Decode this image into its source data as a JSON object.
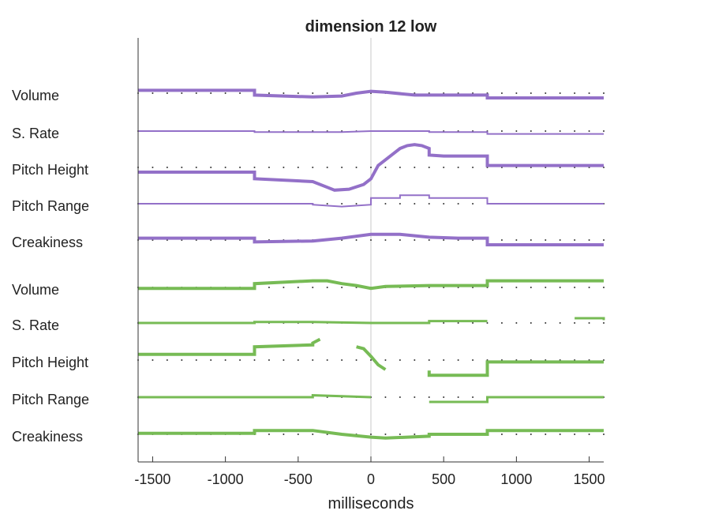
{
  "chart_data": {
    "type": "line",
    "title": "dimension 12 low",
    "xlabel": "milliseconds",
    "ylabel": "",
    "xlim": [
      -1600,
      1600
    ],
    "xticks": [
      -1500,
      -1000,
      -500,
      0,
      500,
      1000,
      1500
    ],
    "xtick_labels": [
      "-1500",
      "-1000",
      "-500",
      "0",
      "500",
      "1000",
      "1500"
    ],
    "grid": false,
    "reference_line_x": 0,
    "colors": {
      "purple": "#9370C8",
      "green": "#77BB55",
      "axis": "#333333",
      "zero_line": "#c8c8c8",
      "baseline_dots": "#333333"
    },
    "rows": [
      {
        "label": "Volume",
        "group": "purple",
        "weight": 4,
        "segments": [
          [
            [
              -1600,
              3
            ],
            [
              -800,
              3
            ],
            [
              -800,
              -2
            ],
            [
              -400,
              -4
            ],
            [
              -200,
              -3
            ],
            [
              -100,
              0
            ],
            [
              0,
              2
            ],
            [
              100,
              1
            ],
            [
              300,
              -2
            ],
            [
              500,
              -2
            ],
            [
              800,
              -2
            ],
            [
              800,
              -5
            ],
            [
              1600,
              -5
            ]
          ]
        ]
      },
      {
        "label": "S. Rate",
        "group": "purple",
        "weight": 2,
        "segments": [
          [
            [
              -1600,
              0
            ],
            [
              -800,
              0
            ],
            [
              -800,
              -1
            ],
            [
              -200,
              -1
            ],
            [
              0,
              0
            ],
            [
              400,
              0
            ],
            [
              400,
              -1
            ],
            [
              800,
              -1
            ],
            [
              800,
              -3
            ],
            [
              1600,
              -3
            ]
          ]
        ]
      },
      {
        "label": "Pitch Height",
        "group": "purple",
        "weight": 4,
        "segments": [
          [
            [
              -1600,
              -5
            ],
            [
              -800,
              -5
            ],
            [
              -800,
              -12
            ],
            [
              -400,
              -15
            ],
            [
              -300,
              -21
            ],
            [
              -250,
              -24
            ],
            [
              -150,
              -23
            ],
            [
              -50,
              -18
            ],
            [
              0,
              -12
            ],
            [
              50,
              2
            ],
            [
              100,
              8
            ],
            [
              150,
              14
            ],
            [
              200,
              20
            ],
            [
              250,
              23
            ],
            [
              300,
              24
            ],
            [
              350,
              23
            ],
            [
              400,
              20
            ],
            [
              400,
              13
            ],
            [
              500,
              12
            ],
            [
              800,
              12
            ],
            [
              800,
              2
            ],
            [
              1600,
              2
            ]
          ]
        ]
      },
      {
        "label": "Pitch Range",
        "group": "purple",
        "weight": 2,
        "segments": [
          [
            [
              -1600,
              0
            ],
            [
              -400,
              0
            ],
            [
              -400,
              -1
            ],
            [
              -200,
              -3
            ],
            [
              0,
              -1
            ],
            [
              0,
              6
            ],
            [
              200,
              6
            ],
            [
              200,
              9
            ],
            [
              400,
              9
            ],
            [
              400,
              6
            ],
            [
              800,
              6
            ],
            [
              800,
              0
            ],
            [
              1600,
              0
            ]
          ]
        ]
      },
      {
        "label": "Creakiness",
        "group": "purple",
        "weight": 4,
        "segments": [
          [
            [
              -1600,
              2
            ],
            [
              -800,
              2
            ],
            [
              -800,
              -2
            ],
            [
              -400,
              -1
            ],
            [
              -200,
              2
            ],
            [
              0,
              6
            ],
            [
              200,
              6
            ],
            [
              400,
              3
            ],
            [
              600,
              2
            ],
            [
              800,
              2
            ],
            [
              800,
              -5
            ],
            [
              1600,
              -5
            ]
          ]
        ]
      },
      {
        "label": "Volume",
        "group": "green",
        "weight": 4,
        "segments": [
          [
            [
              -1600,
              -1
            ],
            [
              -800,
              -1
            ],
            [
              -800,
              4
            ],
            [
              -400,
              7
            ],
            [
              -300,
              7
            ],
            [
              -200,
              4
            ],
            [
              -100,
              2
            ],
            [
              0,
              -1
            ],
            [
              100,
              1
            ],
            [
              400,
              2
            ],
            [
              800,
              2
            ],
            [
              800,
              7
            ],
            [
              1600,
              7
            ]
          ]
        ]
      },
      {
        "label": "S. Rate",
        "group": "green",
        "weight": 3,
        "segments": [
          [
            [
              -1600,
              0
            ],
            [
              -800,
              0
            ],
            [
              -800,
              1
            ],
            [
              -400,
              1
            ],
            [
              0,
              0
            ],
            [
              400,
              0
            ],
            [
              400,
              2
            ],
            [
              800,
              2
            ]
          ],
          [
            [
              1400,
              5
            ],
            [
              1600,
              5
            ],
            [
              1600,
              3
            ]
          ]
        ]
      },
      {
        "label": "Pitch Height",
        "group": "green",
        "weight": 4,
        "segments": [
          [
            [
              -1600,
              6
            ],
            [
              -800,
              6
            ],
            [
              -800,
              14
            ],
            [
              -400,
              16
            ],
            [
              -400,
              18
            ],
            [
              -350,
              22
            ]
          ],
          [
            [
              -100,
              14
            ],
            [
              -50,
              12
            ],
            [
              0,
              4
            ],
            [
              50,
              -5
            ],
            [
              100,
              -10
            ]
          ],
          [
            [
              400,
              -11
            ],
            [
              400,
              -16
            ],
            [
              800,
              -16
            ],
            [
              800,
              -2
            ],
            [
              1600,
              -2
            ]
          ]
        ]
      },
      {
        "label": "Pitch Range",
        "group": "green",
        "weight": 3,
        "segments": [
          [
            [
              -1600,
              0
            ],
            [
              -400,
              0
            ],
            [
              -400,
              2
            ],
            [
              -200,
              1
            ],
            [
              0,
              0
            ]
          ],
          [
            [
              400,
              -5
            ],
            [
              800,
              -5
            ],
            [
              800,
              0
            ],
            [
              1600,
              0
            ]
          ]
        ]
      },
      {
        "label": "Creakiness",
        "group": "green",
        "weight": 4,
        "segments": [
          [
            [
              -1600,
              1
            ],
            [
              -800,
              1
            ],
            [
              -800,
              4
            ],
            [
              -400,
              4
            ],
            [
              -200,
              0
            ],
            [
              0,
              -3
            ],
            [
              100,
              -4
            ],
            [
              400,
              -2
            ],
            [
              400,
              0
            ],
            [
              800,
              0
            ],
            [
              800,
              4
            ],
            [
              1600,
              4
            ]
          ]
        ]
      }
    ]
  }
}
